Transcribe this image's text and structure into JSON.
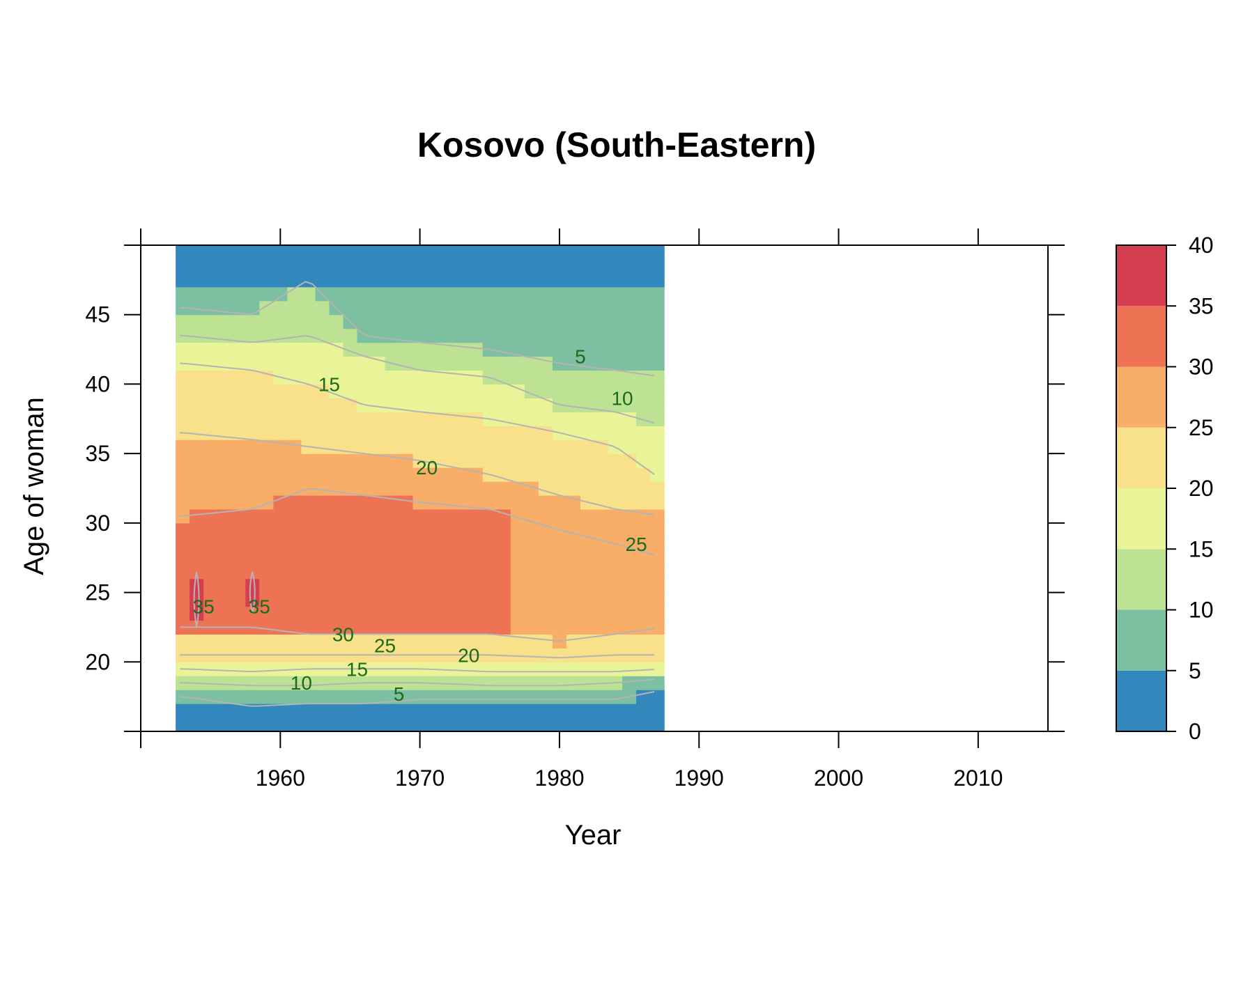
{
  "chart_data": {
    "type": "heatmap",
    "title": "Kosovo (South-Eastern)",
    "xlabel": "Year",
    "ylabel": "Age of woman",
    "xlim": [
      1950,
      2015
    ],
    "ylim": [
      15,
      50
    ],
    "x_ticks": [
      1960,
      1970,
      1980,
      1990,
      2000,
      2010
    ],
    "y_ticks": [
      20,
      25,
      30,
      35,
      40,
      45
    ],
    "data_x_range": [
      1952.5,
      1987.5
    ],
    "colorbar": {
      "ticks": [
        0,
        5,
        10,
        15,
        20,
        25,
        30,
        35,
        40
      ],
      "bins": [
        {
          "range": [
            0,
            5
          ],
          "color": "#3288bd"
        },
        {
          "range": [
            5,
            10
          ],
          "color": "#7cc0a1"
        },
        {
          "range": [
            10,
            15
          ],
          "color": "#bde293"
        },
        {
          "range": [
            15,
            20
          ],
          "color": "#e9f498"
        },
        {
          "range": [
            20,
            25
          ],
          "color": "#f9e08a"
        },
        {
          "range": [
            25,
            30
          ],
          "color": "#f8ad69"
        },
        {
          "range": [
            30,
            35
          ],
          "color": "#ee7355"
        },
        {
          "range": [
            35,
            40
          ],
          "color": "#d53e4f"
        }
      ]
    },
    "contour_level_bands": [
      {
        "year": 1953,
        "bounds": [
          17.5,
          18.5,
          19.5,
          20.5,
          22.5,
          30.5,
          36.5,
          41.5,
          43.5,
          45.5
        ]
      },
      {
        "year": 1958,
        "bounds": [
          16.8,
          18.3,
          19.3,
          20.5,
          22.5,
          31.0,
          36.0,
          41.0,
          43.0,
          45.0
        ]
      },
      {
        "year": 1962,
        "bounds": [
          17.0,
          18.3,
          19.5,
          20.5,
          22.0,
          32.5,
          35.5,
          40.0,
          43.5,
          47.5
        ]
      },
      {
        "year": 1966,
        "bounds": [
          17.0,
          18.5,
          19.5,
          20.5,
          22.0,
          32.0,
          35.0,
          38.5,
          42.0,
          43.5
        ]
      },
      {
        "year": 1970,
        "bounds": [
          17.3,
          18.5,
          19.5,
          20.5,
          22.0,
          31.5,
          34.5,
          38.0,
          41.0,
          43.0
        ]
      },
      {
        "year": 1975,
        "bounds": [
          17.3,
          18.3,
          19.3,
          20.5,
          22.0,
          31.0,
          33.5,
          37.5,
          40.5,
          42.5
        ]
      },
      {
        "year": 1980,
        "bounds": [
          17.3,
          18.3,
          19.3,
          20.3,
          21.5,
          29.5,
          32.0,
          36.5,
          38.5,
          41.5
        ]
      },
      {
        "year": 1984,
        "bounds": [
          17.3,
          18.5,
          19.3,
          20.5,
          22.0,
          28.5,
          31.0,
          35.5,
          38.0,
          41.0
        ]
      },
      {
        "year": 1987.5,
        "bounds": [
          18.0,
          18.8,
          19.5,
          20.5,
          22.5,
          27.5,
          30.5,
          33.0,
          37.0,
          40.5
        ]
      }
    ],
    "peak_regions": [
      {
        "x": [
          1953.5,
          1954.5
        ],
        "y": [
          22.5,
          26.5
        ],
        "band": 7
      },
      {
        "x": [
          1957.5,
          1958.5
        ],
        "y": [
          23.5,
          26.5
        ],
        "band": 7
      }
    ],
    "high_core": {
      "x_end_by_year": [
        [
          1953,
          30.5
        ],
        [
          1976,
          27.5
        ]
      ],
      "x_end": 1976.5,
      "y": [
        22.5,
        27.5
      ]
    },
    "contour_labels": [
      {
        "text": "5",
        "x": 1981.5,
        "y": 42
      },
      {
        "text": "10",
        "x": 1984.5,
        "y": 39
      },
      {
        "text": "15",
        "x": 1963.5,
        "y": 40
      },
      {
        "text": "20",
        "x": 1970.5,
        "y": 34
      },
      {
        "text": "25",
        "x": 1985.5,
        "y": 28.5
      },
      {
        "text": "35",
        "x": 1954.5,
        "y": 24
      },
      {
        "text": "35",
        "x": 1958.5,
        "y": 24
      },
      {
        "text": "30",
        "x": 1964.5,
        "y": 22
      },
      {
        "text": "25",
        "x": 1967.5,
        "y": 21.2
      },
      {
        "text": "20",
        "x": 1973.5,
        "y": 20.5
      },
      {
        "text": "15",
        "x": 1965.5,
        "y": 19.5
      },
      {
        "text": "10",
        "x": 1961.5,
        "y": 18.5
      },
      {
        "text": "5",
        "x": 1968.5,
        "y": 17.7
      }
    ]
  }
}
